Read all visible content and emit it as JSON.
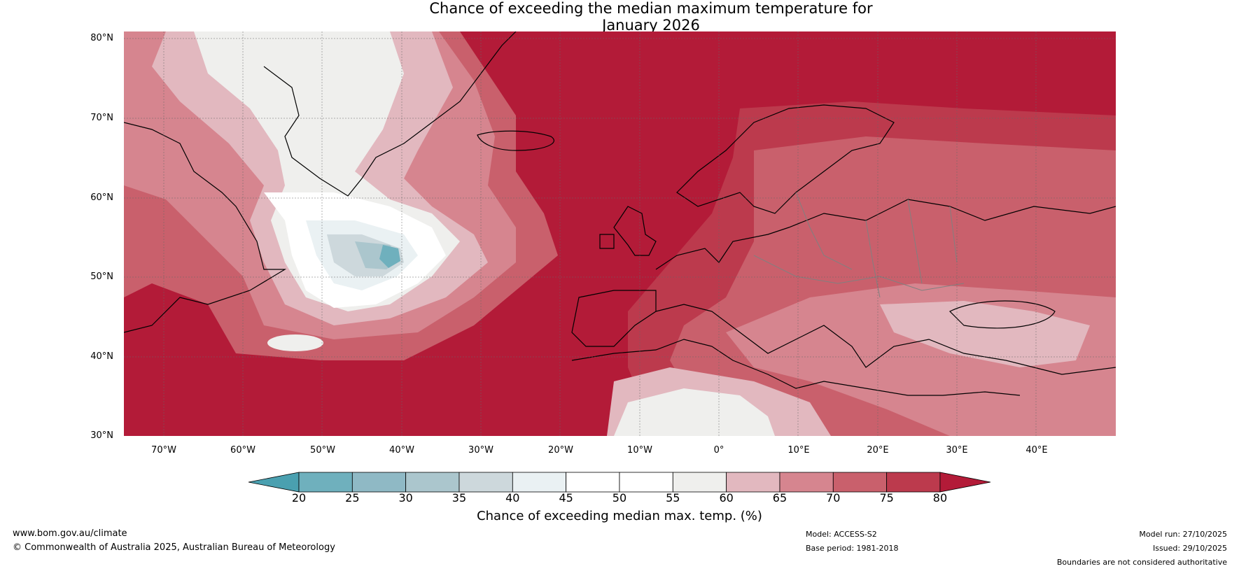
{
  "title": {
    "line1": "Chance of exceeding the median maximum temperature for",
    "line2": "January 2026"
  },
  "map": {
    "latitude_labels": [
      "80°N",
      "70°N",
      "60°N",
      "50°N",
      "40°N",
      "30°N"
    ],
    "longitude_labels": [
      "70°W",
      "60°W",
      "50°W",
      "40°W",
      "30°W",
      "20°W",
      "10°W",
      "0°",
      "10°E",
      "20°E",
      "30°E",
      "40°E"
    ],
    "extent": {
      "lon": [
        -75,
        50
      ],
      "lat": [
        30,
        80.5
      ]
    }
  },
  "colorbar": {
    "ticks": [
      "20",
      "25",
      "30",
      "35",
      "40",
      "45",
      "50",
      "55",
      "60",
      "65",
      "70",
      "75",
      "80"
    ],
    "label": "Chance of exceeding median max. temp. (%)",
    "colors": {
      "below_20": "#4aa0b0",
      "20-25": "#6fb0bd",
      "25-30": "#8fb9c5",
      "30-35": "#abc6cd",
      "35-40": "#cdd8dc",
      "40-45": "#eaf1f3",
      "45-50": "#ffffff",
      "50-55": "#ffffff",
      "55-60": "#efefed",
      "60-65": "#e2b8bf",
      "65-70": "#d6858f",
      "70-75": "#c9606c",
      "75-80": "#bc3a4d",
      "above_80": "#b31b38"
    }
  },
  "footer": {
    "website": "www.bom.gov.au/climate",
    "copyright": "© Commonwealth of Australia 2025, Australian Bureau of Meteorology",
    "model": "Model: ACCESS-S2",
    "base_period": "Base period: 1981-2018",
    "model_run": "Model run: 27/10/2025",
    "issued": "Issued: 29/10/2025",
    "disclaimer": "Boundaries are not considered authoritative"
  }
}
